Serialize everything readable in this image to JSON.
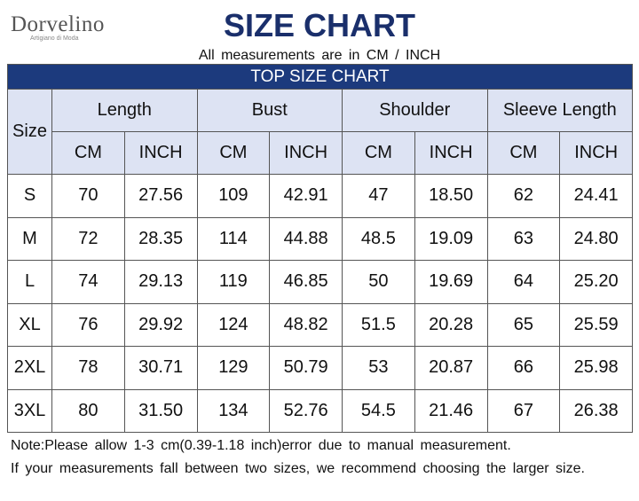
{
  "brand": {
    "name": "Dorvelino",
    "tagline": "Artigiano di Moda"
  },
  "header": {
    "title": "SIZE CHART",
    "subtitle": "All measurements are in CM / INCH"
  },
  "table": {
    "title": "TOP SIZE CHART",
    "size_header": "Size",
    "groups": [
      "Length",
      "Bust",
      "Shoulder",
      "Sleeve Length"
    ],
    "units": [
      "CM",
      "INCH",
      "CM",
      "INCH",
      "CM",
      "INCH",
      "CM",
      "INCH"
    ],
    "rows": [
      [
        "S",
        "70",
        "27.56",
        "109",
        "42.91",
        "47",
        "18.50",
        "62",
        "24.41"
      ],
      [
        "M",
        "72",
        "28.35",
        "114",
        "44.88",
        "48.5",
        "19.09",
        "63",
        "24.80"
      ],
      [
        "L",
        "74",
        "29.13",
        "119",
        "46.85",
        "50",
        "19.69",
        "64",
        "25.20"
      ],
      [
        "XL",
        "76",
        "29.92",
        "124",
        "48.82",
        "51.5",
        "20.28",
        "65",
        "25.59"
      ],
      [
        "2XL",
        "78",
        "30.71",
        "129",
        "50.79",
        "53",
        "20.87",
        "66",
        "25.98"
      ],
      [
        "3XL",
        "80",
        "31.50",
        "134",
        "52.76",
        "54.5",
        "21.46",
        "67",
        "26.38"
      ]
    ]
  },
  "notes": [
    "Note:Please allow 1-3 cm(0.39-1.18 inch)error due to manual measurement.",
    "If your measurements fall between two sizes, we recommend choosing the larger size."
  ]
}
